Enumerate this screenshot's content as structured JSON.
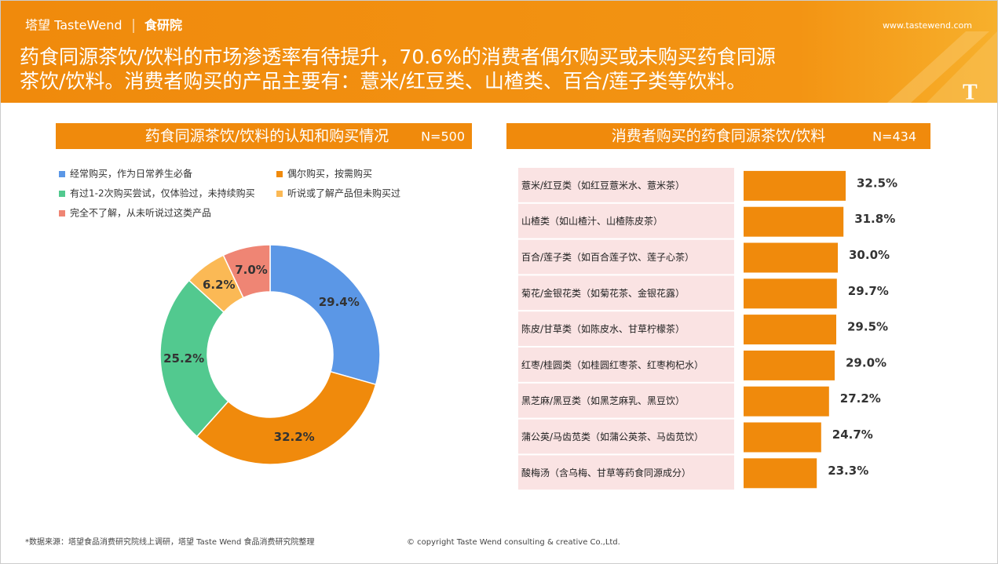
{
  "header": {
    "brand": "塔望 TasteWend",
    "logo": "食研院",
    "website": "www.tastewend.com",
    "headline": [
      "药食同源茶饮/饮料的市场渗透率有待提升，70.6%的消费者偶尔购买或未购买药食同源",
      "茶饮/饮料。消费者购买的产品主要有：薏米/红豆类、山楂类、百合/莲子类等饮料。"
    ]
  },
  "chart_data": [
    {
      "type": "donut",
      "title": "药食同源茶饮/饮料的认知和购买情况",
      "sample": "N=500",
      "categories": [
        "经常购买，作为日常养生必备",
        "偶尔购买，按需购买",
        "有过1-2次购买尝试，仅体验过，未持续购买",
        "听说或了解产品但未购买过",
        "完全不了解，从未听说过这类产品"
      ],
      "values": [
        29.4,
        32.2,
        25.2,
        6.2,
        7.0
      ],
      "value_labels": [
        "29.4%",
        "32.2%",
        "25.2%",
        "6.2%",
        "7.0%"
      ],
      "colors": [
        "#5b97e6",
        "#f08a0c",
        "#52c98f",
        "#fbb955",
        "#ef8574"
      ]
    },
    {
      "type": "bar",
      "title": "消费者购买的药食同源茶饮/饮料",
      "sample": "N=434",
      "categories": [
        "薏米/红豆类（如红豆薏米水、薏米茶）",
        "山楂类（如山楂汁、山楂陈皮茶）",
        "百合/莲子类（如百合莲子饮、莲子心茶）",
        "菊花/金银花类（如菊花茶、金银花露）",
        "陈皮/甘草类（如陈皮水、甘草柠檬茶）",
        "红枣/桂圆类（如桂圆红枣茶、红枣枸杞水）",
        "黑芝麻/黑豆类（如黑芝麻乳、黑豆饮）",
        "蒲公英/马齿苋类（如蒲公英茶、马齿苋饮）",
        "酸梅汤（含乌梅、甘草等药食同源成分）"
      ],
      "values": [
        32.5,
        31.8,
        30.0,
        29.7,
        29.5,
        29.0,
        27.2,
        24.7,
        23.3
      ],
      "value_labels": [
        "32.5%",
        "31.8%",
        "30.0%",
        "29.7%",
        "29.5%",
        "29.0%",
        "27.2%",
        "24.7%",
        "23.3%"
      ],
      "color": "#f08a0c"
    }
  ],
  "footer": {
    "source": "*数据来源：塔望食品消费研究院线上调研，塔望 Taste Wend 食品消费研究院整理",
    "copyright": "© copyright Taste Wend consulting & creative Co.,Ltd."
  }
}
